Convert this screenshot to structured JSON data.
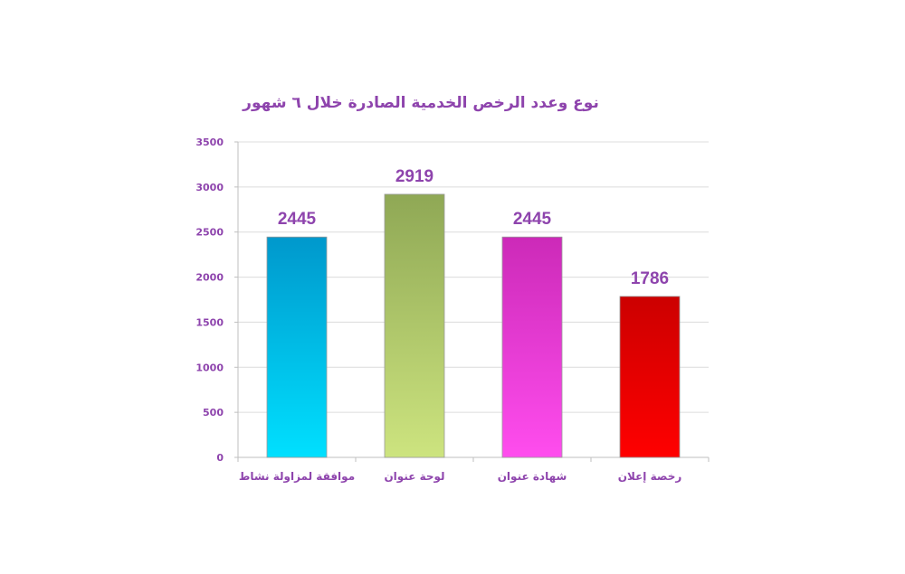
{
  "chart_data": {
    "type": "bar",
    "title": "نوع وعدد الرخص الخدمية الصادرة خلال ٦ شهور",
    "categories": [
      "موافقة لمزاولة نشاط",
      "لوحة عنوان",
      "شهادة عنوان",
      "رخصة إعلان"
    ],
    "values": [
      2445,
      2919,
      2445,
      1786
    ],
    "data_labels": [
      "2445",
      "2919",
      "2445",
      "1786"
    ],
    "y_ticks": [
      "0",
      "500",
      "1000",
      "1500",
      "2000",
      "2500",
      "3000",
      "3500"
    ],
    "ylim": [
      0,
      3500
    ],
    "grid": true,
    "legend": "none",
    "colors": [
      {
        "top": "#0098cc",
        "bottom": "#00e0ff"
      },
      {
        "top": "#8fa855",
        "bottom": "#cde47f"
      },
      {
        "top": "#cc2ab8",
        "bottom": "#ff4dee"
      },
      {
        "top": "#cc0000",
        "bottom": "#ff0000"
      }
    ],
    "text_color": "#8e44ad"
  }
}
